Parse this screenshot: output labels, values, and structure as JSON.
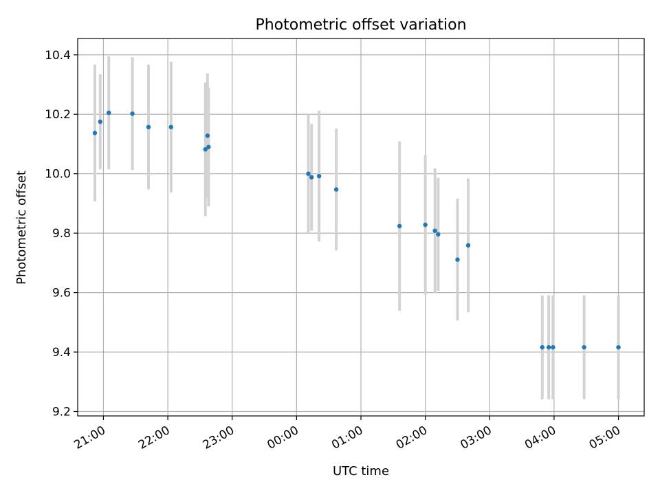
{
  "chart_data": {
    "type": "scatter",
    "title": "Photometric offset variation",
    "xlabel": "UTC time",
    "ylabel": "Photometric offset",
    "xlim": [
      "20:36",
      "05:24"
    ],
    "ylim": [
      9.185,
      10.455
    ],
    "grid": true,
    "x_ticks": [
      "21:00",
      "22:00",
      "23:00",
      "00:00",
      "01:00",
      "02:00",
      "03:00",
      "04:00",
      "05:00"
    ],
    "y_ticks": [
      "9.2",
      "9.4",
      "9.6",
      "9.8",
      "10.0",
      "10.2",
      "10.4"
    ],
    "colors": {
      "point": "#1f77b4",
      "errorbar": "#d3d3d3",
      "grid": "#b0b0b0"
    },
    "points": [
      {
        "x": "20:52",
        "y": 10.137,
        "yerr": 0.23
      },
      {
        "x": "20:57",
        "y": 10.175,
        "yerr": 0.16
      },
      {
        "x": "21:05",
        "y": 10.205,
        "yerr": 0.19
      },
      {
        "x": "21:27",
        "y": 10.202,
        "yerr": 0.19
      },
      {
        "x": "21:42",
        "y": 10.157,
        "yerr": 0.21
      },
      {
        "x": "22:03",
        "y": 10.157,
        "yerr": 0.22
      },
      {
        "x": "22:35",
        "y": 10.082,
        "yerr": 0.225
      },
      {
        "x": "22:37",
        "y": 10.128,
        "yerr": 0.21
      },
      {
        "x": "22:38",
        "y": 10.09,
        "yerr": 0.2
      },
      {
        "x": "00:11",
        "y": 10.0,
        "yerr": 0.2
      },
      {
        "x": "00:14",
        "y": 9.988,
        "yerr": 0.18
      },
      {
        "x": "00:21",
        "y": 9.992,
        "yerr": 0.22
      },
      {
        "x": "00:37",
        "y": 9.947,
        "yerr": 0.205
      },
      {
        "x": "01:36",
        "y": 9.824,
        "yerr": 0.285
      },
      {
        "x": "02:00",
        "y": 9.828,
        "yerr": 0.235
      },
      {
        "x": "02:09",
        "y": 9.808,
        "yerr": 0.21
      },
      {
        "x": "02:12",
        "y": 9.796,
        "yerr": 0.19
      },
      {
        "x": "02:30",
        "y": 9.711,
        "yerr": 0.205
      },
      {
        "x": "02:40",
        "y": 9.759,
        "yerr": 0.225
      },
      {
        "x": "03:49",
        "y": 9.416,
        "yerr": 0.175
      },
      {
        "x": "03:55",
        "y": 9.416,
        "yerr": 0.175
      },
      {
        "x": "03:59",
        "y": 9.416,
        "yerr": 0.175
      },
      {
        "x": "04:28",
        "y": 9.416,
        "yerr": 0.175
      },
      {
        "x": "05:00",
        "y": 9.416,
        "yerr": 0.175
      }
    ]
  }
}
